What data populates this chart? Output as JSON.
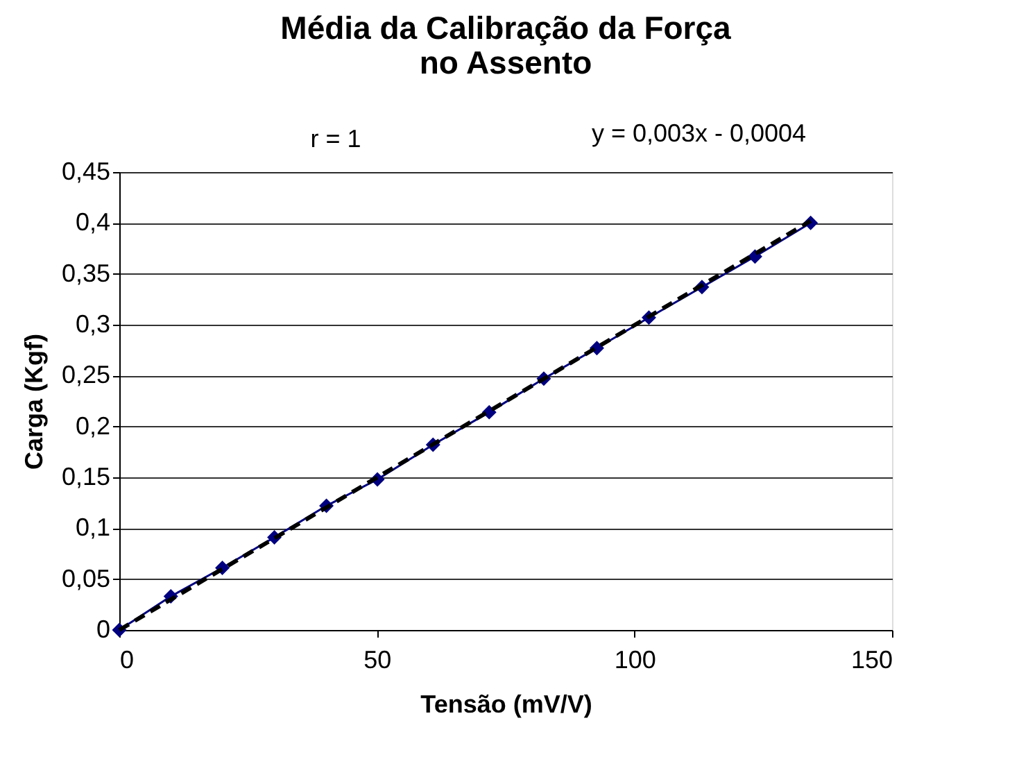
{
  "chart_data": {
    "type": "line",
    "title": "Média da Calibração da Força no Assento",
    "xlabel": "Tensão (mV/V)",
    "ylabel": "Carga (Kgf)",
    "x": [
      0,
      10.0,
      20.0,
      30.1,
      40.2,
      50.1,
      60.9,
      71.8,
      82.4,
      92.7,
      102.8,
      113.1,
      123.4,
      134.2
    ],
    "series": [
      {
        "color": "#000080",
        "marker": "diamond",
        "line_style": "solid",
        "values": [
          0,
          0.033,
          0.061,
          0.091,
          0.122,
          0.148,
          0.182,
          0.214,
          0.247,
          0.277,
          0.307,
          0.337,
          0.367,
          0.4
        ]
      },
      {
        "color": "#000000",
        "marker": "none",
        "line_style": "dashed",
        "x": [
          0,
          134.2
        ],
        "values": [
          0,
          0.402
        ]
      }
    ],
    "xlim": [
      0,
      150
    ],
    "xticks": [
      0,
      50,
      100,
      150
    ],
    "ylim": [
      0,
      0.45
    ],
    "yticks": [
      0,
      {
        "value": 0.05,
        "label": "0,05"
      },
      {
        "value": 0.1,
        "label": "0,1"
      },
      {
        "value": 0.15,
        "label": "0,15"
      },
      {
        "value": 0.2,
        "label": "0,2"
      },
      {
        "value": 0.25,
        "label": "0,25"
      },
      {
        "value": 0.3,
        "label": "0,3"
      },
      {
        "value": 0.35,
        "label": "0,35"
      },
      {
        "value": 0.4,
        "label": "0,4"
      },
      {
        "value": 0.45,
        "label": "0,45"
      }
    ],
    "grid": "y",
    "legend": false,
    "annotations": [
      "r = 1",
      "y = 0,003x - 0,0004"
    ]
  }
}
